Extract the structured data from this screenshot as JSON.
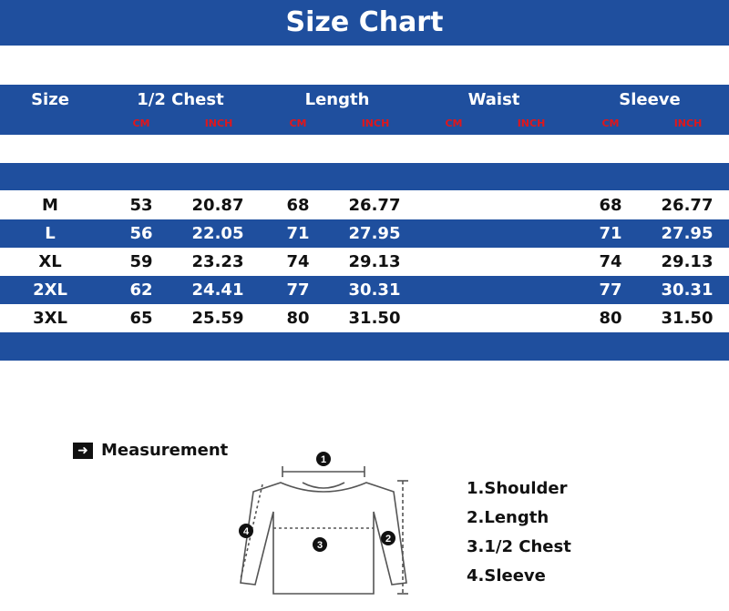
{
  "title": "Size Chart",
  "header": {
    "size": "Size",
    "columns": [
      "1/2 Chest",
      "Length",
      "Waist",
      "Sleeve"
    ],
    "unit_cm": "CM",
    "unit_inch": "INCH"
  },
  "rows": [
    {
      "size": "M",
      "chest_cm": "53",
      "chest_in": "20.87",
      "length_cm": "68",
      "length_in": "26.77",
      "sleeve_cm": "68",
      "sleeve_in": "26.77"
    },
    {
      "size": "L",
      "chest_cm": "56",
      "chest_in": "22.05",
      "length_cm": "71",
      "length_in": "27.95",
      "sleeve_cm": "71",
      "sleeve_in": "27.95"
    },
    {
      "size": "XL",
      "chest_cm": "59",
      "chest_in": "23.23",
      "length_cm": "74",
      "length_in": "29.13",
      "sleeve_cm": "74",
      "sleeve_in": "29.13"
    },
    {
      "size": "2XL",
      "chest_cm": "62",
      "chest_in": "24.41",
      "length_cm": "77",
      "length_in": "30.31",
      "sleeve_cm": "77",
      "sleeve_in": "30.31"
    },
    {
      "size": "3XL",
      "chest_cm": "65",
      "chest_in": "25.59",
      "length_cm": "80",
      "length_in": "31.50",
      "sleeve_cm": "80",
      "sleeve_in": "31.50"
    }
  ],
  "measurement": {
    "title": "Measurement",
    "icon": "arrow-right-icon",
    "markers": [
      "1",
      "2",
      "3",
      "4"
    ],
    "items": [
      "1.Shoulder",
      "2.Length",
      "3.1/2 Chest",
      "4.Sleeve"
    ]
  },
  "colors": {
    "band_blue": "#1f4f9e",
    "unit_red": "#e0161b"
  }
}
